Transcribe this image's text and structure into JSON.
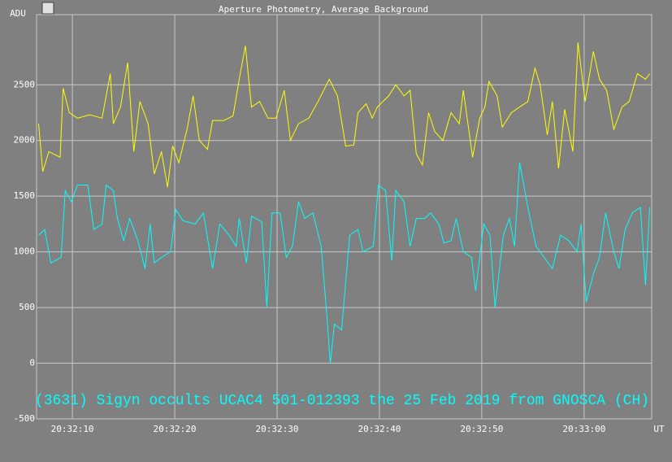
{
  "chart_data": {
    "type": "line",
    "title": "Aperture Photometry, Average Background",
    "ylabel": "ADU",
    "xlabel": "UT",
    "annotation": "(3631) Sigyn occults UCAC4 501-012393 the 25 Feb 2019 from GNOSCA (CH)",
    "xlim": [
      6.5,
      66.6
    ],
    "xticks": [
      {
        "value": 10,
        "label": "20:32:10"
      },
      {
        "value": 20,
        "label": "20:32:20"
      },
      {
        "value": 30,
        "label": "20:32:30"
      },
      {
        "value": 40,
        "label": "20:32:40"
      },
      {
        "value": 50,
        "label": "20:32:50"
      },
      {
        "value": 60,
        "label": "20:33:00"
      }
    ],
    "ylim": [
      -500,
      3130
    ],
    "yticks": [
      -500,
      0,
      500,
      1000,
      1500,
      2000,
      2500
    ],
    "grid": true,
    "series": [
      {
        "color": "#ffff00",
        "x": [
          6.7,
          7.1,
          7.7,
          8.8,
          9.1,
          9.7,
          10.5,
          11.7,
          12.9,
          13.7,
          14.0,
          14.7,
          15.4,
          16.0,
          16.6,
          17.4,
          18.0,
          18.7,
          19.3,
          19.8,
          20.4,
          21.2,
          21.8,
          22.4,
          23.2,
          23.7,
          24.8,
          25.7,
          26.3,
          26.9,
          27.5,
          28.3,
          29.1,
          29.9,
          30.7,
          31.3,
          32.1,
          33.1,
          34.0,
          35.1,
          35.9,
          36.7,
          37.5,
          37.9,
          38.7,
          39.3,
          39.8,
          40.9,
          41.6,
          42.4,
          43.0,
          43.6,
          44.2,
          44.8,
          45.4,
          46.2,
          47.0,
          47.8,
          48.2,
          49.1,
          49.8,
          50.3,
          50.7,
          51.5,
          52.0,
          52.9,
          53.7,
          54.5,
          55.2,
          55.7,
          56.4,
          56.9,
          57.5,
          58.1,
          58.9,
          59.4,
          60.1,
          60.9,
          61.5,
          62.2,
          62.9,
          63.7,
          64.4,
          65.2,
          66.0,
          66.4
        ],
        "values": [
          2150,
          1720,
          1900,
          1850,
          2470,
          2250,
          2200,
          2230,
          2200,
          2600,
          2150,
          2300,
          2700,
          1900,
          2350,
          2150,
          1700,
          1900,
          1580,
          1950,
          1800,
          2100,
          2400,
          2000,
          1920,
          2180,
          2180,
          2220,
          2550,
          2850,
          2300,
          2350,
          2200,
          2200,
          2450,
          2000,
          2150,
          2200,
          2350,
          2550,
          2400,
          1950,
          1960,
          2250,
          2330,
          2200,
          2300,
          2400,
          2500,
          2400,
          2450,
          1880,
          1780,
          2250,
          2080,
          2000,
          2250,
          2150,
          2450,
          1850,
          2200,
          2300,
          2530,
          2400,
          2120,
          2250,
          2300,
          2350,
          2650,
          2500,
          2050,
          2350,
          1750,
          2280,
          1900,
          2880,
          2350,
          2800,
          2550,
          2450,
          2100,
          2300,
          2350,
          2600,
          2550,
          2600
        ]
      },
      {
        "color": "#00ffff",
        "x": [
          6.7,
          7.3,
          7.9,
          8.9,
          9.3,
          9.9,
          10.5,
          11.5,
          12.1,
          12.9,
          13.3,
          14.0,
          14.4,
          15.0,
          15.6,
          16.4,
          17.1,
          17.6,
          18.0,
          18.7,
          19.6,
          20.1,
          20.8,
          22.0,
          22.8,
          23.7,
          24.4,
          25.3,
          26.0,
          26.3,
          27.0,
          27.5,
          28.5,
          29.0,
          29.5,
          30.3,
          30.9,
          31.5,
          32.1,
          32.7,
          33.5,
          34.3,
          34.8,
          35.2,
          35.6,
          36.3,
          37.1,
          37.9,
          38.4,
          39.4,
          39.9,
          40.6,
          41.2,
          41.6,
          42.4,
          43.0,
          43.6,
          44.4,
          45.0,
          45.8,
          46.3,
          47.0,
          47.5,
          48.2,
          49.0,
          49.4,
          50.2,
          50.8,
          51.3,
          52.1,
          52.7,
          53.2,
          53.7,
          54.5,
          55.3,
          56.1,
          56.9,
          57.7,
          58.5,
          59.3,
          59.7,
          60.2,
          60.9,
          61.5,
          62.1,
          62.9,
          63.4,
          64.0,
          64.7,
          65.5,
          66.0,
          66.4
        ],
        "values": [
          1150,
          1200,
          900,
          950,
          1550,
          1450,
          1600,
          1600,
          1200,
          1250,
          1600,
          1550,
          1300,
          1100,
          1300,
          1100,
          850,
          1250,
          900,
          950,
          1000,
          1380,
          1280,
          1250,
          1350,
          850,
          1250,
          1150,
          1050,
          1300,
          900,
          1320,
          1270,
          500,
          1350,
          1350,
          950,
          1050,
          1450,
          1300,
          1350,
          1050,
          500,
          0,
          350,
          300,
          1150,
          1200,
          1000,
          1050,
          1600,
          1550,
          920,
          1550,
          1450,
          1050,
          1300,
          1300,
          1350,
          1250,
          1080,
          1100,
          1300,
          1000,
          950,
          650,
          1250,
          1150,
          500,
          1150,
          1300,
          1050,
          1800,
          1400,
          1050,
          950,
          850,
          1150,
          1100,
          1000,
          1250,
          550,
          800,
          950,
          1350,
          1000,
          850,
          1200,
          1350,
          1400,
          700,
          1400
        ]
      }
    ]
  }
}
